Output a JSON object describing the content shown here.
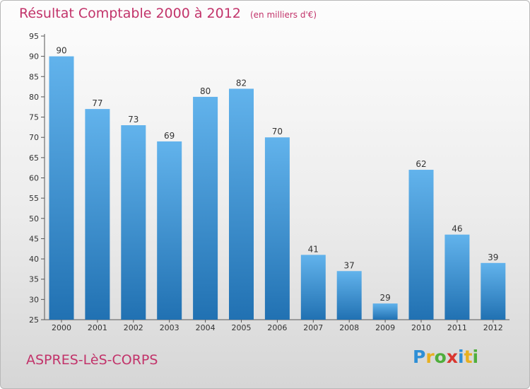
{
  "header": {
    "title": "Résultat Comptable 2000 à 2012",
    "subtitle": "(en milliers d'€)"
  },
  "footer": {
    "commune": "ASPRES-LèS-CORPS",
    "logo": {
      "letters": [
        "P",
        "r",
        "o",
        "x",
        "i",
        "t",
        "i"
      ],
      "colors": [
        "#2e8fd6",
        "#e8b020",
        "#4fae3c",
        "#d9362f",
        "#2e8fd6",
        "#e8b020",
        "#4fae3c"
      ]
    }
  },
  "colors": {
    "bar_top": "#62b3ec",
    "bar_bottom": "#2171b2",
    "accent_text": "#c2336a"
  },
  "chart_data": {
    "type": "bar",
    "categories": [
      "2000",
      "2001",
      "2002",
      "2003",
      "2004",
      "2005",
      "2006",
      "2007",
      "2008",
      "2009",
      "2010",
      "2011",
      "2012"
    ],
    "values": [
      90,
      77,
      73,
      69,
      80,
      82,
      70,
      41,
      37,
      29,
      62,
      46,
      39
    ],
    "title": "Résultat Comptable 2000 à 2012",
    "subtitle": "(en milliers d'€)",
    "ylim": [
      25,
      95
    ],
    "yticks": [
      25,
      30,
      35,
      40,
      45,
      50,
      55,
      60,
      65,
      70,
      75,
      80,
      85,
      90,
      95
    ],
    "data_labels": true,
    "grid": false,
    "legend": "none"
  }
}
